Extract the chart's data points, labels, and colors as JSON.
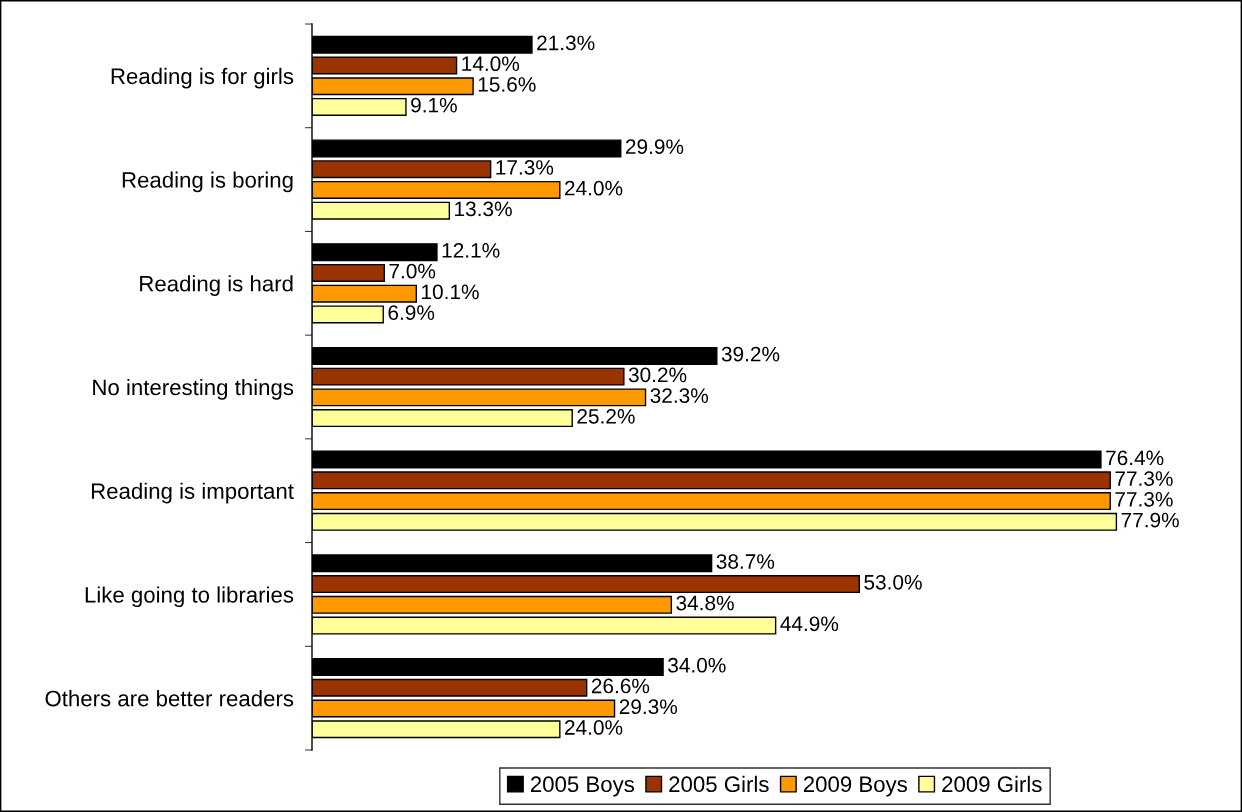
{
  "chart_data": {
    "type": "bar",
    "orientation": "horizontal",
    "categories": [
      "Reading is for girls",
      "Reading is boring",
      "Reading is hard",
      "No interesting things",
      "Reading is important",
      "Like going to libraries",
      "Others are better readers"
    ],
    "series": [
      {
        "name": "2005 Boys",
        "color": "#000000",
        "values": [
          21.3,
          29.9,
          12.1,
          39.2,
          76.4,
          38.7,
          34.0
        ],
        "value_labels": [
          "21.3%",
          "29.9%",
          "12.1%",
          "39.2%",
          "76.4%",
          "38.7%",
          "34.0%"
        ]
      },
      {
        "name": "2005 Girls",
        "color": "#993300",
        "values": [
          14.0,
          17.3,
          7.0,
          30.2,
          77.3,
          53.0,
          26.6
        ],
        "value_labels": [
          "14.0%",
          "17.3%",
          "7.0%",
          "30.2%",
          "77.3%",
          "53.0%",
          "26.6%"
        ]
      },
      {
        "name": "2009 Boys",
        "color": "#ff9900",
        "values": [
          15.6,
          24.0,
          10.1,
          32.3,
          77.3,
          34.8,
          29.3
        ],
        "value_labels": [
          "15.6%",
          "24.0%",
          "10.1%",
          "32.3%",
          "77.3%",
          "34.8%",
          "29.3%"
        ]
      },
      {
        "name": "2009 Girls",
        "color": "#ffff99",
        "values": [
          9.1,
          13.3,
          6.9,
          25.2,
          77.9,
          44.9,
          24.0
        ],
        "value_labels": [
          "9.1%",
          "13.3%",
          "6.9%",
          "25.2%",
          "77.9%",
          "44.9%",
          "24.0%"
        ]
      }
    ],
    "legend": "bottom",
    "tick_labels": "y"
  }
}
